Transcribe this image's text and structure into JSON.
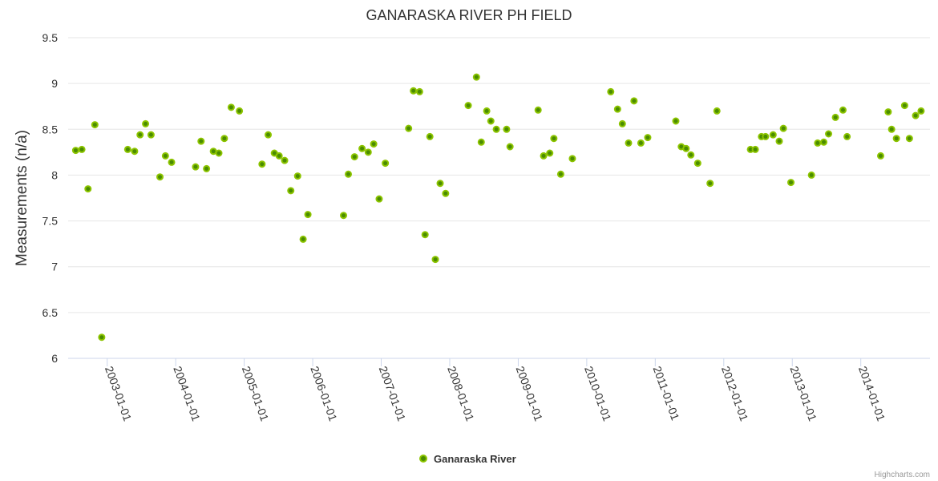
{
  "chart_data": {
    "type": "scatter",
    "title": "GANARASKA RIVER PH FIELD",
    "xlabel": "",
    "ylabel": "Measurements (n/a)",
    "ylim": [
      6,
      9.5
    ],
    "xlim_years": [
      2002.43,
      2015.01
    ],
    "yticks": [
      "6",
      "6.5",
      "7",
      "7.5",
      "8",
      "8.5",
      "9",
      "9.5"
    ],
    "yticks_values": [
      6,
      6.5,
      7,
      7.5,
      8,
      8.5,
      9,
      9.5
    ],
    "xticks": [
      "2003-01-01",
      "2004-01-01",
      "2005-01-01",
      "2006-01-01",
      "2007-01-01",
      "2008-01-01",
      "2009-01-01",
      "2010-01-01",
      "2011-01-01",
      "2012-01-01",
      "2013-01-01",
      "2014-01-01"
    ],
    "grid": true,
    "legend_position": "bottom-center",
    "credit": "Highcharts.com",
    "colors": {
      "marker_fill": "#4a8c00",
      "marker_stroke": "#8cc400",
      "grid": "#e6e6e6"
    },
    "series": [
      {
        "name": "Ganaraska River",
        "x": [
          2002.54,
          2002.63,
          2002.72,
          2002.82,
          2002.92,
          2003.3,
          2003.4,
          2003.48,
          2003.56,
          2003.64,
          2003.77,
          2003.85,
          2003.94,
          2004.29,
          2004.37,
          2004.45,
          2004.55,
          2004.63,
          2004.71,
          2004.81,
          2004.93,
          2005.26,
          2005.35,
          2005.44,
          2005.51,
          2005.59,
          2005.68,
          2005.78,
          2005.86,
          2005.93,
          2006.45,
          2006.52,
          2006.61,
          2006.72,
          2006.81,
          2006.89,
          2006.97,
          2007.06,
          2007.4,
          2007.47,
          2007.56,
          2007.71,
          2007.64,
          2007.79,
          2007.86,
          2007.94,
          2008.27,
          2008.39,
          2008.46,
          2008.54,
          2008.6,
          2008.68,
          2008.83,
          2008.88,
          2009.29,
          2009.37,
          2009.46,
          2009.52,
          2009.62,
          2009.79,
          2010.35,
          2010.45,
          2010.52,
          2010.61,
          2010.69,
          2010.79,
          2010.89,
          2011.3,
          2011.38,
          2011.45,
          2011.52,
          2011.62,
          2011.8,
          2011.9,
          2012.39,
          2012.46,
          2012.55,
          2012.61,
          2012.72,
          2012.81,
          2012.87,
          2012.98,
          2013.28,
          2013.37,
          2013.46,
          2013.53,
          2013.63,
          2013.74,
          2013.8,
          2014.29,
          2014.4,
          2014.45,
          2014.52,
          2014.64,
          2014.71,
          2014.8,
          2014.88
        ],
        "y": [
          8.27,
          8.28,
          7.85,
          8.55,
          6.23,
          8.28,
          8.26,
          8.44,
          8.56,
          8.44,
          7.98,
          8.21,
          8.14,
          8.09,
          8.37,
          8.07,
          8.26,
          8.24,
          8.4,
          8.74,
          8.7,
          8.12,
          8.44,
          8.24,
          8.21,
          8.16,
          7.83,
          7.99,
          7.3,
          7.57,
          7.56,
          8.01,
          8.2,
          8.29,
          8.25,
          8.34,
          7.74,
          8.13,
          8.51,
          8.92,
          8.91,
          8.42,
          7.35,
          7.08,
          7.91,
          7.8,
          8.76,
          9.07,
          8.36,
          8.7,
          8.59,
          8.5,
          8.5,
          8.31,
          8.71,
          8.21,
          8.24,
          8.4,
          8.01,
          8.18,
          8.91,
          8.72,
          8.56,
          8.35,
          8.81,
          8.35,
          8.41,
          8.59,
          8.31,
          8.29,
          8.22,
          8.13,
          7.91,
          8.7,
          8.28,
          8.28,
          8.42,
          8.42,
          8.44,
          8.37,
          8.51,
          7.92,
          8.0,
          8.35,
          8.36,
          8.45,
          8.63,
          8.71,
          8.42,
          8.21,
          8.69,
          8.5,
          8.4,
          8.76,
          8.4,
          8.65,
          8.7
        ]
      }
    ]
  }
}
